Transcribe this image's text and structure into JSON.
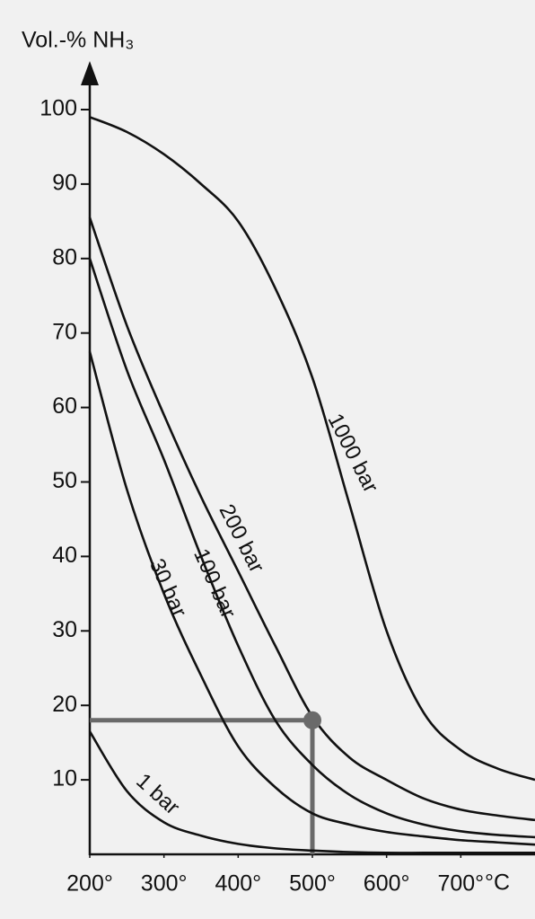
{
  "chart_data": {
    "type": "line",
    "y_label": "Vol.-% NH₃",
    "x_unit": "°C",
    "x": [
      200,
      250,
      300,
      350,
      400,
      450,
      500,
      550,
      600,
      650,
      700,
      750,
      800
    ],
    "series": [
      {
        "name": "1000 bar",
        "color": "#111111",
        "values": [
          99,
          97,
          94,
          90,
          85,
          76,
          64,
          47,
          30,
          19,
          14,
          11.5,
          10
        ]
      },
      {
        "name": "200 bar",
        "color": "#111111",
        "values": [
          85.5,
          71,
          59,
          48,
          38,
          28,
          18.5,
          13,
          10,
          7.5,
          6,
          5.2,
          4.6
        ]
      },
      {
        "name": "100 bar",
        "color": "#111111",
        "values": [
          80,
          65,
          53,
          40,
          28,
          18,
          12,
          8,
          5.5,
          4,
          3.1,
          2.6,
          2.3
        ]
      },
      {
        "name": "30 bar",
        "color": "#111111",
        "values": [
          67.5,
          49,
          35,
          24,
          14.5,
          9,
          5.5,
          4,
          3,
          2.4,
          1.9,
          1.6,
          1.3
        ]
      },
      {
        "name": "1 bar",
        "color": "#111111",
        "values": [
          16.5,
          8.5,
          4.3,
          2.5,
          1.4,
          0.8,
          0.5,
          0.3,
          0.2,
          0.2,
          0.2,
          0.2,
          0.2
        ]
      }
    ],
    "highlight": {
      "x": 500,
      "y": 18,
      "color": "#6a6a6a"
    },
    "xlim": [
      200,
      800
    ],
    "ylim": [
      0,
      100
    ],
    "xticks": [
      {
        "value": 200,
        "label": "200°"
      },
      {
        "value": 300,
        "label": "300°"
      },
      {
        "value": 400,
        "label": "400°"
      },
      {
        "value": 500,
        "label": "500°"
      },
      {
        "value": 600,
        "label": "600°"
      },
      {
        "value": 700,
        "label": "700°"
      }
    ],
    "yticks": [
      10,
      20,
      30,
      40,
      50,
      60,
      70,
      80,
      90,
      100
    ]
  }
}
